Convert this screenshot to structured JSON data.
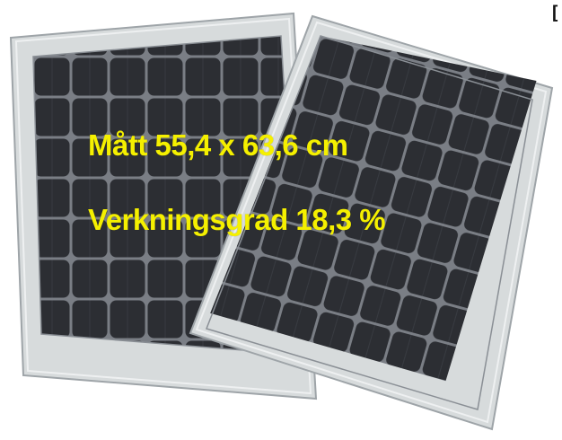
{
  "image": {
    "subject": "Two monocrystalline solar panels, one overlapping the other",
    "colors": {
      "background": "#ffffff",
      "frame": "#d7dbdc",
      "frame_edge": "#9ea4a8",
      "cell": "#2c2e33",
      "grid_line": "#7a7e85",
      "caption_text": "#f5f000"
    }
  },
  "captions": {
    "dimensions": "Mått 55,4 x 63,6 cm",
    "efficiency": "Verkningsgrad 18,3 %"
  },
  "corner_glyph": "["
}
